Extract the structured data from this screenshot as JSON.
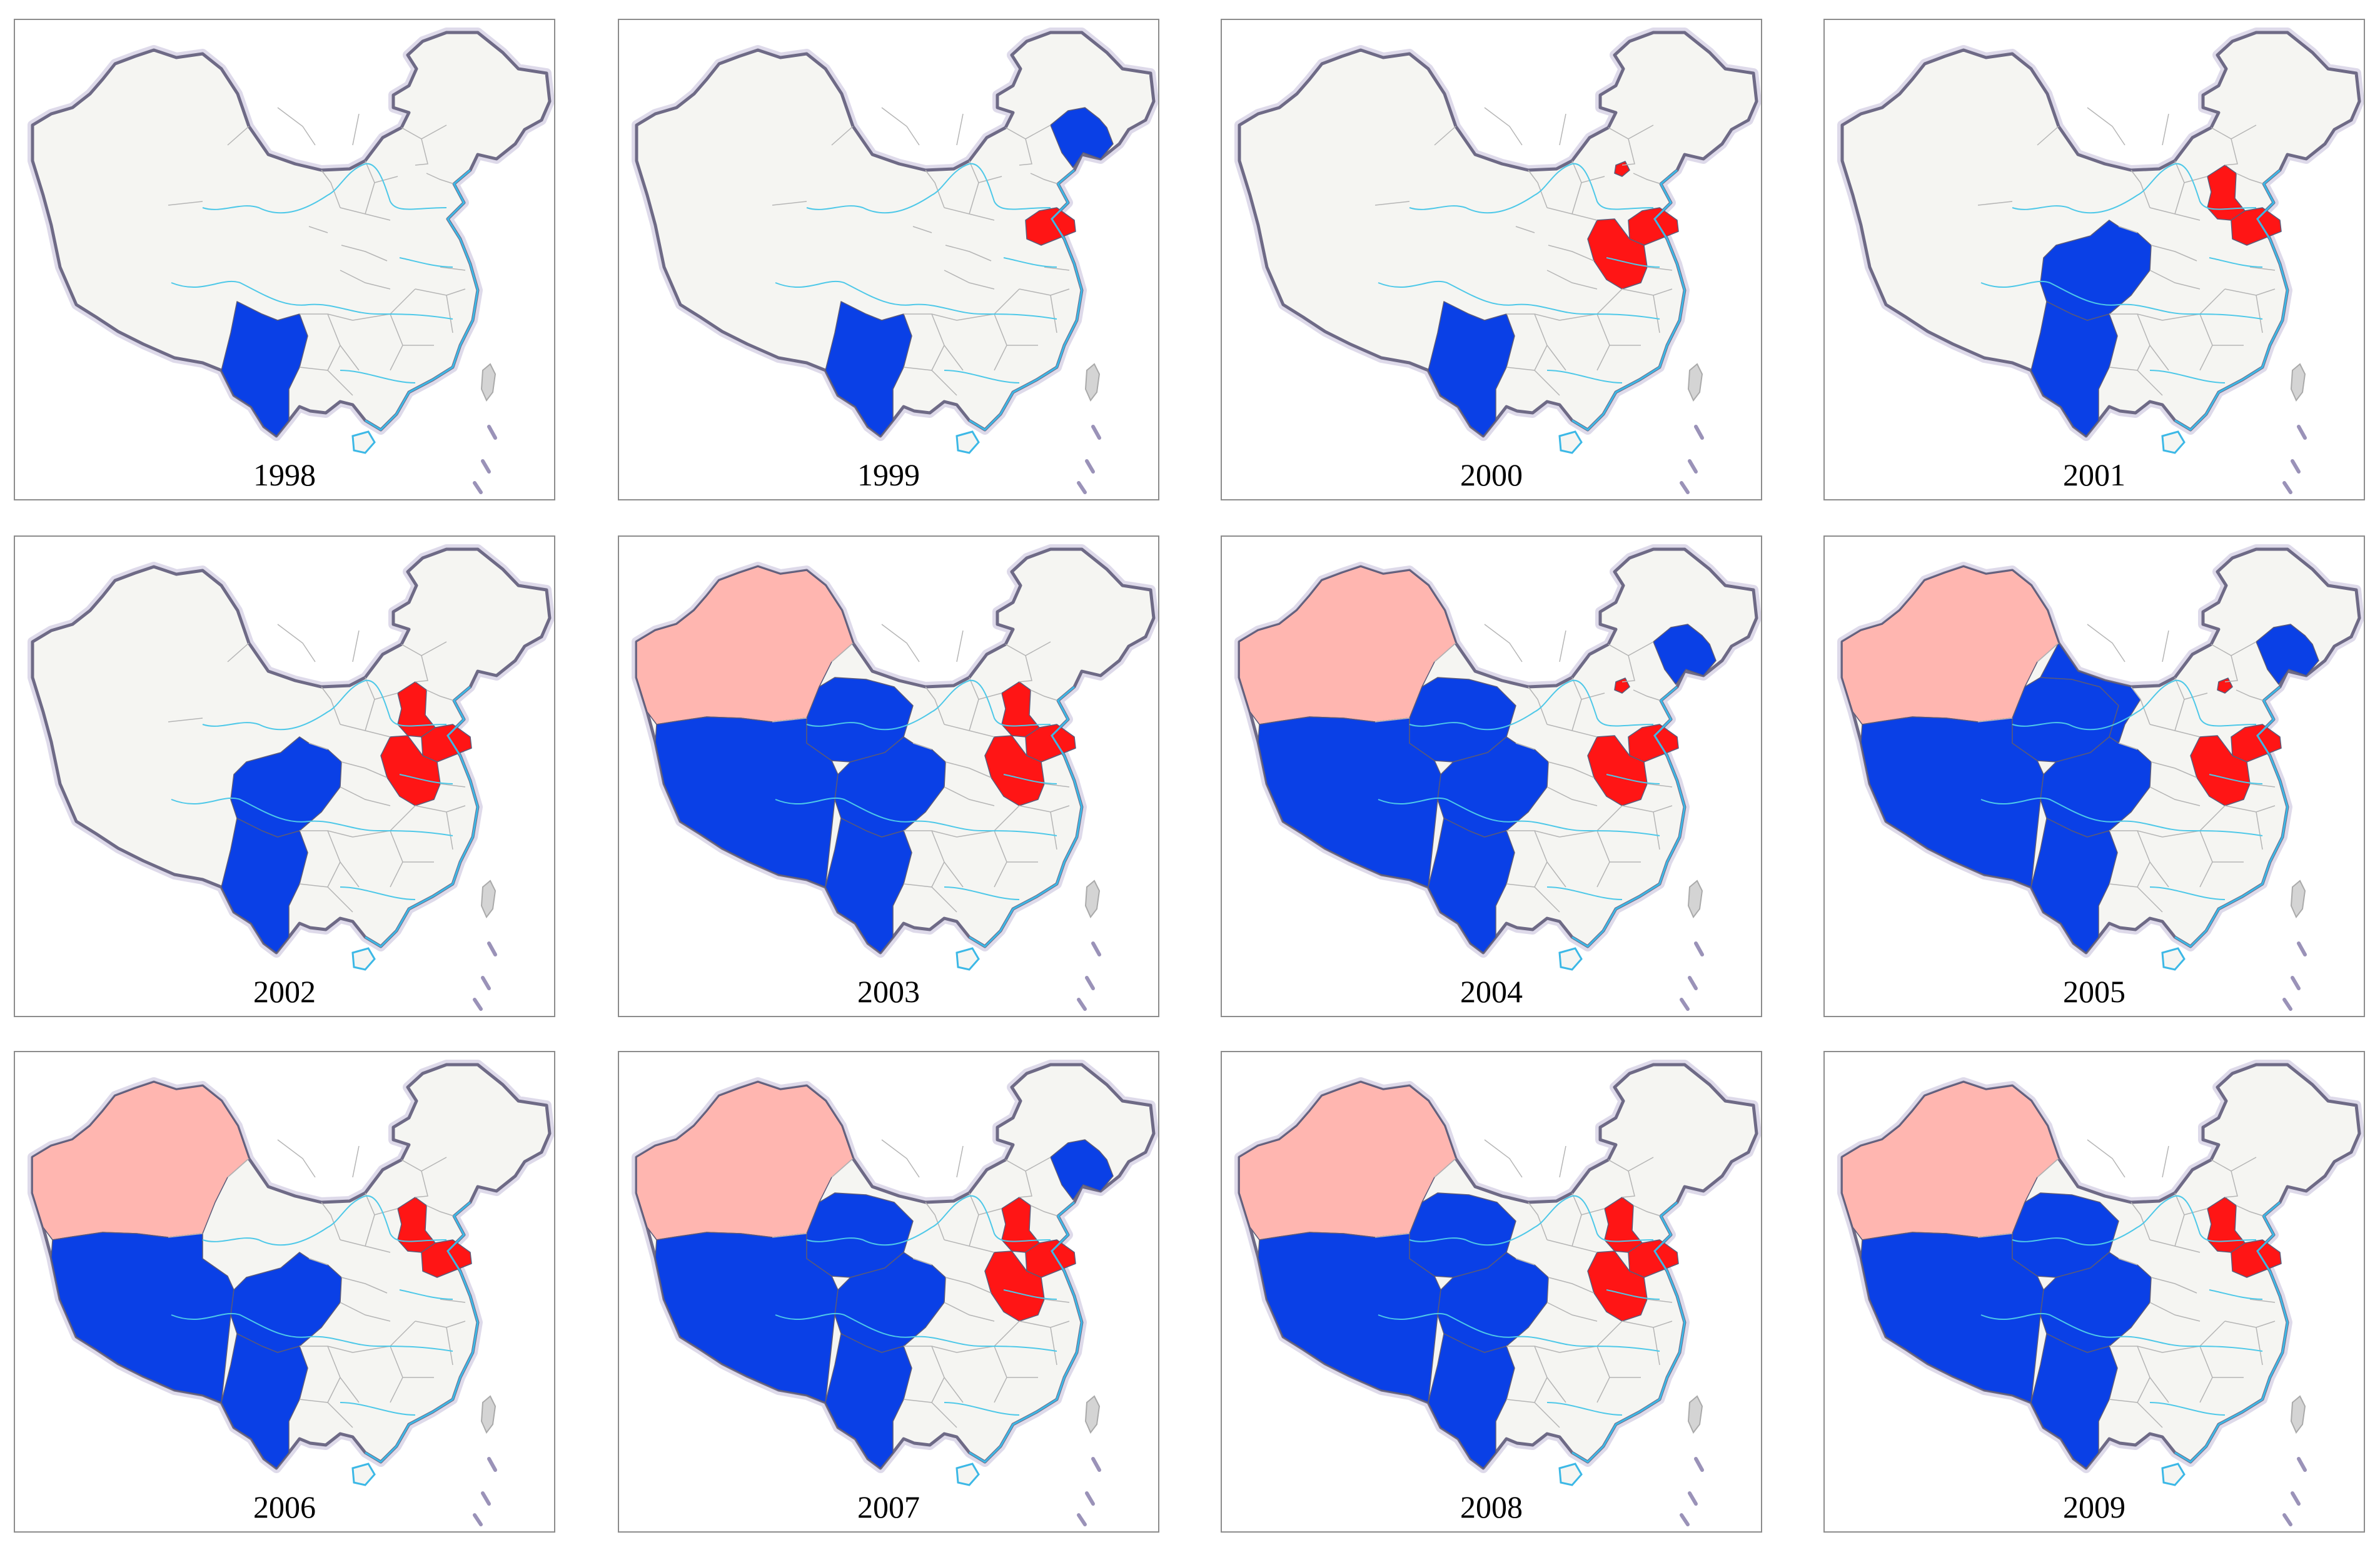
{
  "colors": {
    "blue": "#0a40e6",
    "red": "#ff1515",
    "pink": "#ffb6b0",
    "land": "#f5f5f2",
    "border": "#6e6a86"
  },
  "panels": [
    {
      "year": "1998",
      "blue": [
        "yunnan"
      ],
      "red": [],
      "pink": []
    },
    {
      "year": "1999",
      "blue": [
        "yunnan",
        "heilongjiang-east"
      ],
      "red": [
        "shandong"
      ],
      "pink": []
    },
    {
      "year": "2000",
      "blue": [
        "yunnan"
      ],
      "red": [
        "shandong",
        "henan",
        "beijing"
      ],
      "pink": []
    },
    {
      "year": "2001",
      "blue": [
        "yunnan",
        "sichuan"
      ],
      "red": [
        "hebei",
        "shandong"
      ],
      "pink": []
    },
    {
      "year": "2002",
      "blue": [
        "yunnan",
        "sichuan"
      ],
      "red": [
        "hebei",
        "shandong",
        "henan"
      ],
      "pink": []
    },
    {
      "year": "2003",
      "blue": [
        "tibet",
        "qinghai",
        "sichuan",
        "yunnan"
      ],
      "red": [
        "hebei",
        "shandong",
        "henan"
      ],
      "pink": [
        "xinjiang"
      ]
    },
    {
      "year": "2004",
      "blue": [
        "tibet",
        "qinghai",
        "sichuan",
        "yunnan",
        "heilongjiang-east"
      ],
      "red": [
        "shandong",
        "henan",
        "beijing"
      ],
      "pink": [
        "xinjiang"
      ]
    },
    {
      "year": "2005",
      "blue": [
        "tibet",
        "qinghai",
        "gansu",
        "sichuan",
        "yunnan",
        "heilongjiang-east"
      ],
      "red": [
        "shandong",
        "henan",
        "beijing"
      ],
      "pink": [
        "xinjiang"
      ]
    },
    {
      "year": "2006",
      "blue": [
        "tibet",
        "sichuan",
        "yunnan"
      ],
      "red": [
        "hebei",
        "shandong"
      ],
      "pink": [
        "xinjiang"
      ]
    },
    {
      "year": "2007",
      "blue": [
        "tibet",
        "qinghai",
        "sichuan",
        "yunnan",
        "heilongjiang-east"
      ],
      "red": [
        "hebei",
        "shandong",
        "henan"
      ],
      "pink": [
        "xinjiang"
      ]
    },
    {
      "year": "2008",
      "blue": [
        "tibet",
        "qinghai",
        "sichuan",
        "yunnan"
      ],
      "red": [
        "hebei",
        "shandong",
        "henan"
      ],
      "pink": [
        "xinjiang"
      ]
    },
    {
      "year": "2009",
      "blue": [
        "tibet",
        "qinghai",
        "sichuan",
        "yunnan"
      ],
      "red": [
        "hebei",
        "shandong"
      ],
      "pink": [
        "xinjiang"
      ]
    }
  ]
}
